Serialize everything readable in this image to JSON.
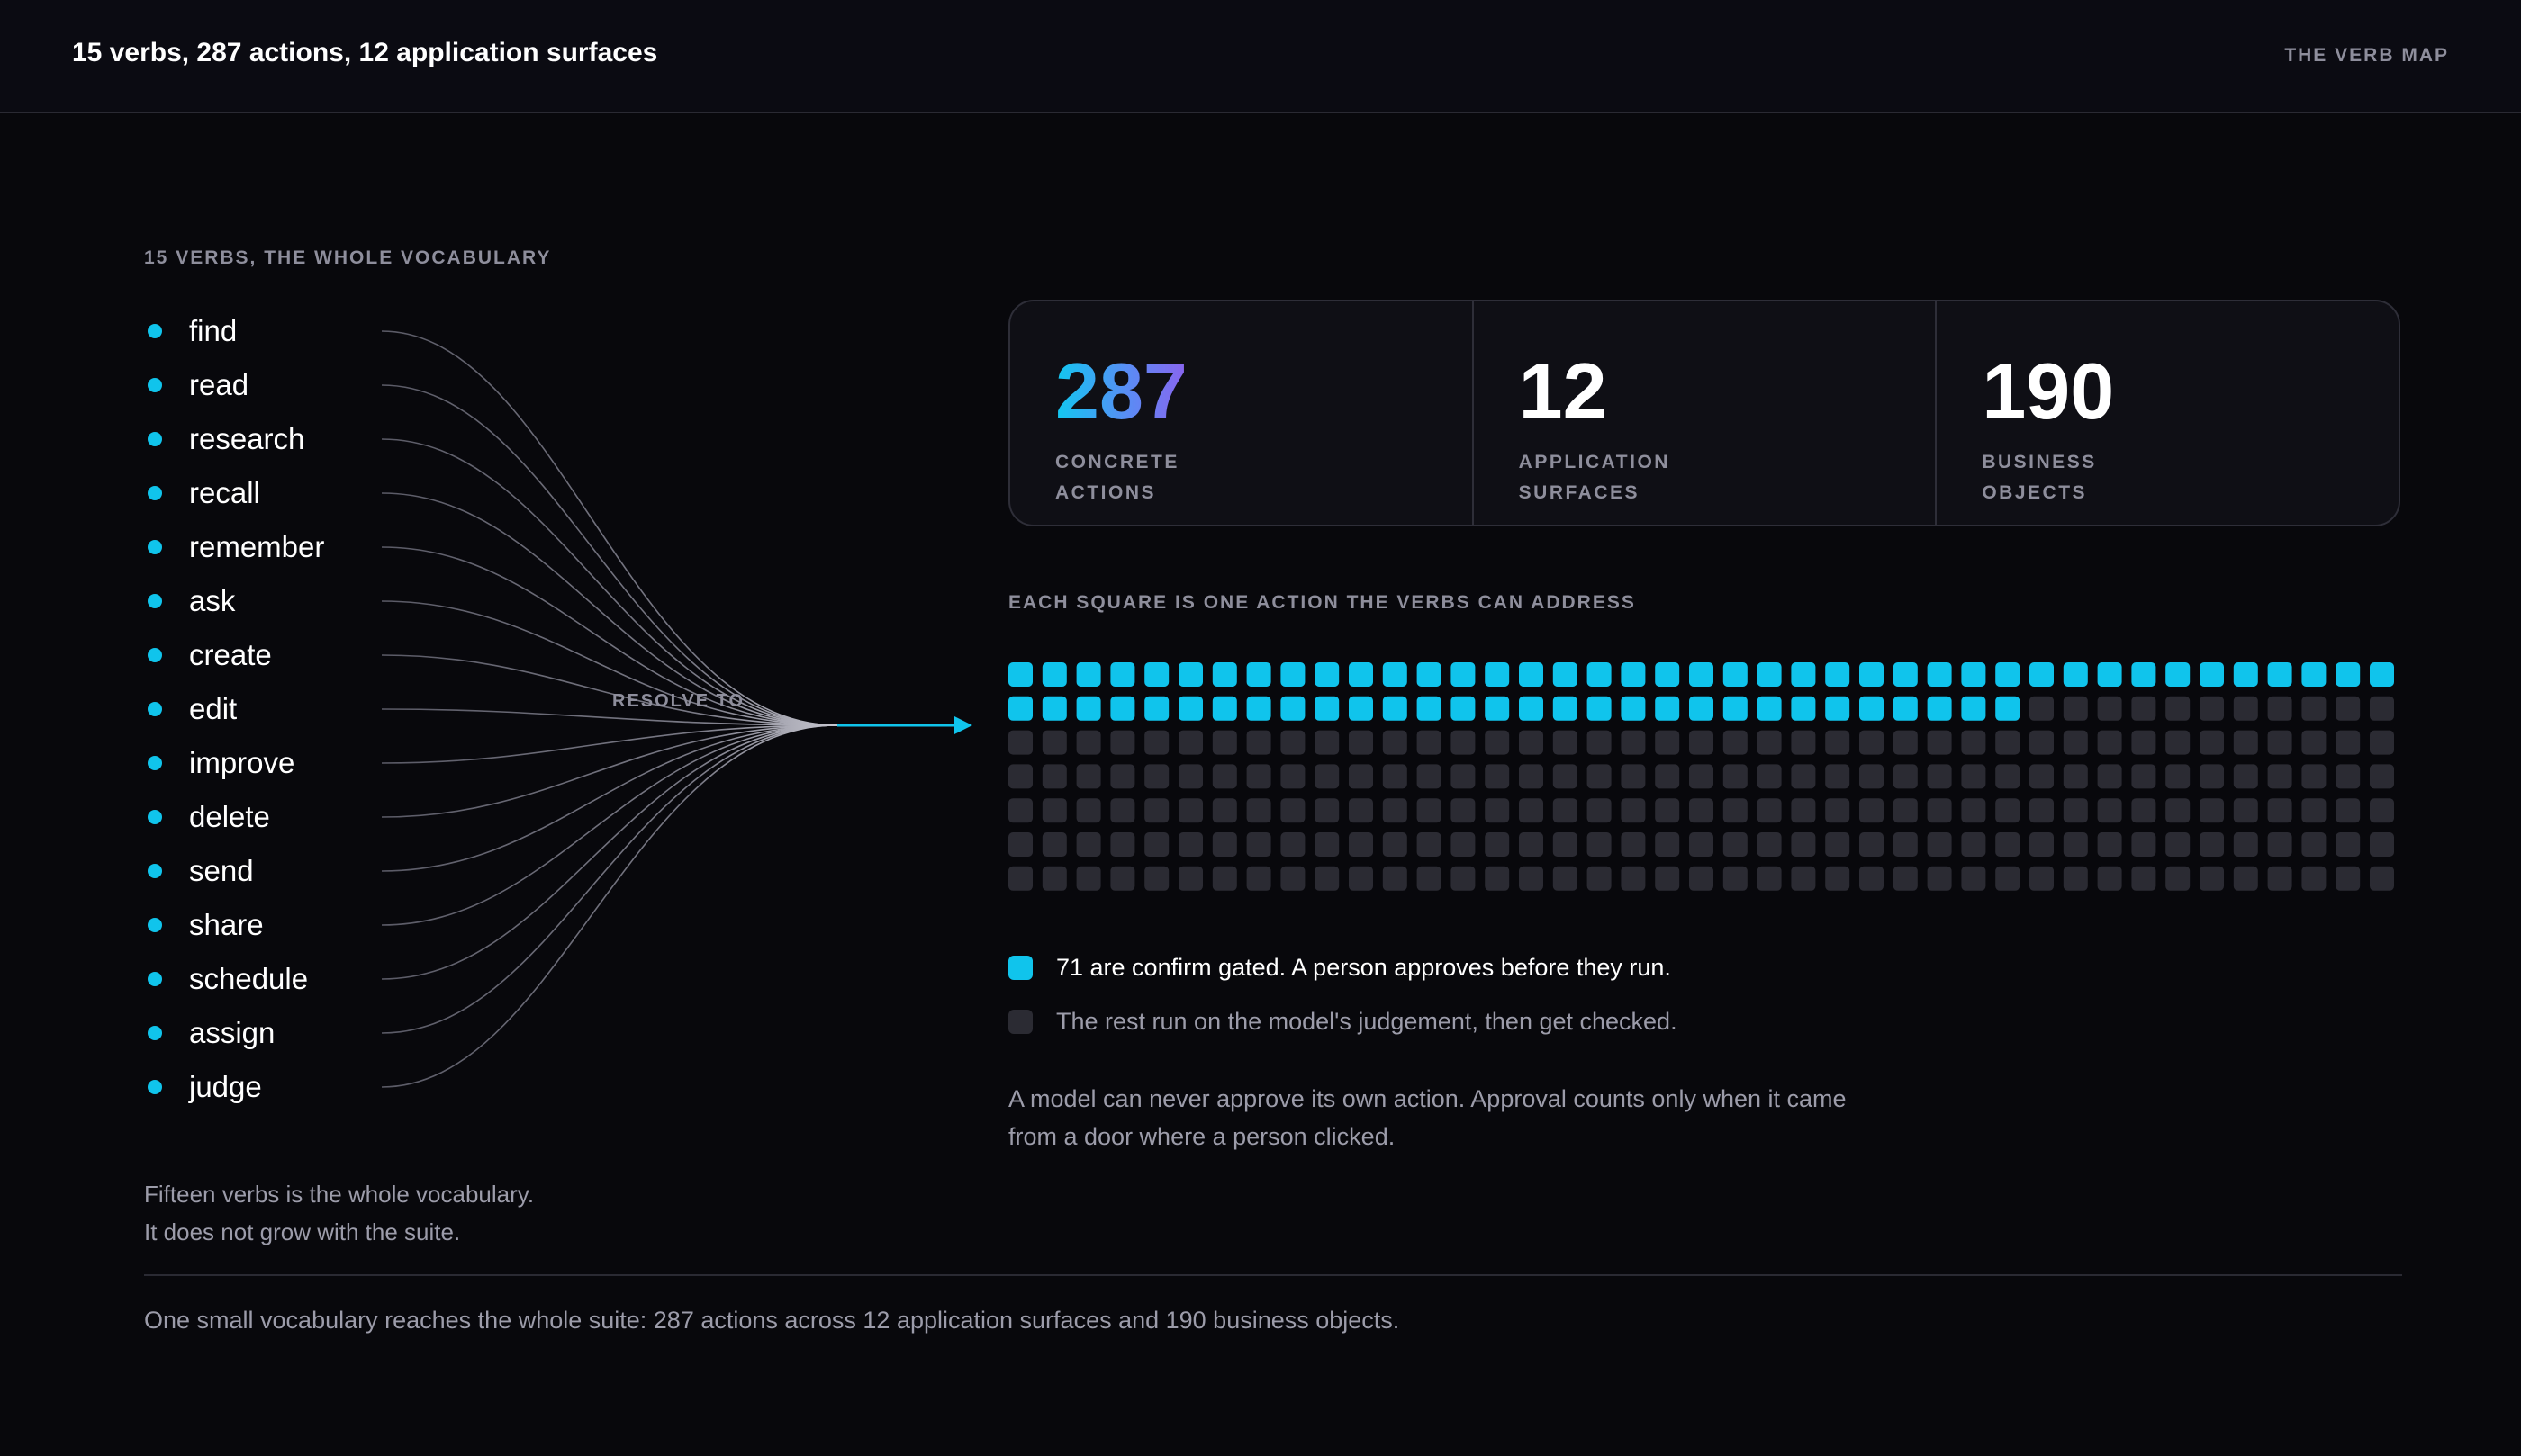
{
  "header": {
    "title": "15 verbs, 287 actions, 12 application surfaces",
    "tag": "THE VERB MAP"
  },
  "vocabulary": {
    "heading": "15 VERBS, THE WHOLE VOCABULARY",
    "verbs": [
      "find",
      "read",
      "research",
      "recall",
      "remember",
      "ask",
      "create",
      "edit",
      "improve",
      "delete",
      "send",
      "share",
      "schedule",
      "assign",
      "judge"
    ],
    "resolve_label": "RESOLVE TO",
    "note_line1": "Fifteen verbs is the whole vocabulary.",
    "note_line2": "It does not grow with the suite."
  },
  "stats": [
    {
      "value": "287",
      "label_line1": "CONCRETE",
      "label_line2": "ACTIONS"
    },
    {
      "value": "12",
      "label_line1": "APPLICATION",
      "label_line2": "SURFACES"
    },
    {
      "value": "190",
      "label_line1": "BUSINESS",
      "label_line2": "OBJECTS"
    }
  ],
  "action_grid": {
    "heading": "EACH SQUARE IS ONE ACTION THE VERBS CAN ADDRESS",
    "total_squares": 287,
    "highlighted_squares": 71,
    "highlight_color": "#10c4ec",
    "muted_color": "#2b2b33"
  },
  "legend": {
    "gated_text": "71 are confirm gated. A person approves before they run.",
    "rest_text": "The rest run on the model's judgement, then get checked."
  },
  "approval_note": {
    "line1": "A model can never approve its own action. Approval counts only when it came",
    "line2": "from a door where a person clicked."
  },
  "summary": "One small vocabulary reaches the whole suite: 287 actions across 12 application surfaces and 190 business objects.",
  "colors": {
    "background": "#08080c",
    "accent_cyan": "#10c4ec",
    "accent_purple": "#8a64ee"
  }
}
